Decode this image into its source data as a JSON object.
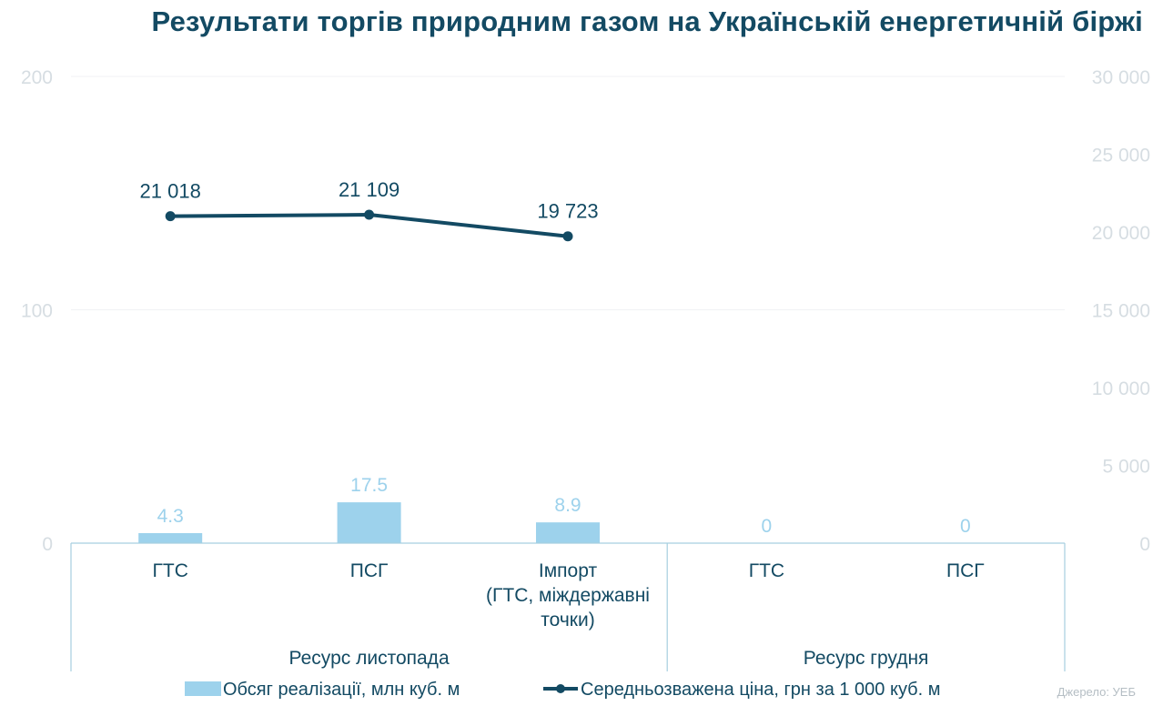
{
  "title": "Результати торгів природним газом на Українській енергетичній біржі",
  "source": "Джерело: УЕБ",
  "colors": {
    "bar": "#9dd2ec",
    "line": "#134a63",
    "grid": "#f0f2f4",
    "axis": "#d6dde2",
    "frame": "#a6cfe0"
  },
  "chart_data": {
    "type": "bar+line",
    "categories": [
      {
        "lines": [
          "ГТС"
        ],
        "group": 0
      },
      {
        "lines": [
          "ПСГ"
        ],
        "group": 0
      },
      {
        "lines": [
          "Імпорт",
          "(ГТС, міждержавні",
          "точки)"
        ],
        "group": 0
      },
      {
        "lines": [
          "ГТС"
        ],
        "group": 1
      },
      {
        "lines": [
          "ПСГ"
        ],
        "group": 1
      }
    ],
    "groups": [
      "Ресурс листопада",
      "Ресурс грудня"
    ],
    "series": [
      {
        "name": "Обсяг реалізації, млн куб. м",
        "type": "bar",
        "axis": "left",
        "values": [
          4.3,
          17.5,
          8.9,
          0,
          0
        ],
        "labels": [
          "4.3",
          "17.5",
          "8.9",
          "0",
          "0"
        ]
      },
      {
        "name": "Середньозважена ціна, грн за 1 000 куб. м",
        "type": "line",
        "axis": "right",
        "values": [
          21018,
          21109,
          19723,
          null,
          null
        ],
        "labels": [
          "21 018",
          "21 109",
          "19 723",
          "",
          ""
        ]
      }
    ],
    "left_axis": {
      "min": 0,
      "max": 200,
      "ticks": [
        0,
        100,
        200
      ],
      "tick_labels": [
        "0",
        "100",
        "200"
      ]
    },
    "right_axis": {
      "min": 0,
      "max": 30000,
      "ticks": [
        0,
        5000,
        10000,
        15000,
        20000,
        25000,
        30000
      ],
      "tick_labels": [
        "0",
        "5 000",
        "10 000",
        "15 000",
        "20 000",
        "25 000",
        "30 000"
      ]
    },
    "grid": true,
    "legend_position": "bottom"
  }
}
